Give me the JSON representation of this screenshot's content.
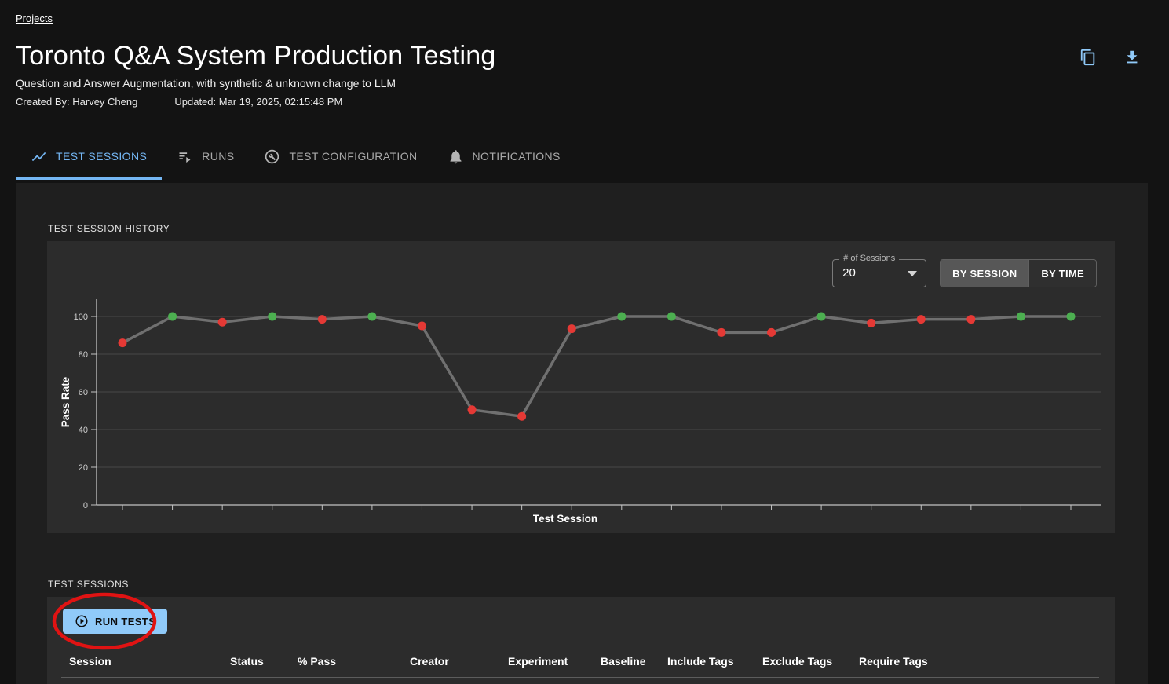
{
  "breadcrumb": {
    "label": "Projects"
  },
  "header": {
    "title": "Toronto Q&A System Production Testing",
    "subtitle": "Question and Answer Augmentation, with synthetic & unknown change to LLM",
    "created_by": "Created By: Harvey Cheng",
    "updated": "Updated: Mar 19, 2025, 02:15:48 PM",
    "actions": [
      {
        "name": "copy-button",
        "icon": "copy-icon"
      },
      {
        "name": "download-button",
        "icon": "download-icon"
      }
    ],
    "accent_color": "#90caf9"
  },
  "tabs": [
    {
      "label": "TEST SESSIONS",
      "icon": "line-chart-icon",
      "active": true
    },
    {
      "label": "RUNS",
      "icon": "playlist-play-icon",
      "active": false
    },
    {
      "label": "TEST CONFIGURATION",
      "icon": "wrench-circle-icon",
      "active": false
    },
    {
      "label": "NOTIFICATIONS",
      "icon": "bell-icon",
      "active": false
    }
  ],
  "history_section": {
    "label": "TEST SESSION HISTORY",
    "sessions_select": {
      "label": "# of Sessions",
      "value": "20"
    },
    "view_toggle": [
      {
        "label": "BY SESSION",
        "active": true
      },
      {
        "label": "BY TIME",
        "active": false
      }
    ]
  },
  "chart_data": {
    "type": "line",
    "title": "",
    "xlabel": "Test Session",
    "ylabel": "Pass Rate",
    "ylim": [
      0,
      100
    ],
    "yticks": [
      0,
      20,
      40,
      60,
      80,
      100
    ],
    "x_tick_labels": "none",
    "grid": true,
    "legend_position": "none",
    "series": [
      {
        "name": "Pass Rate",
        "values": [
          86,
          100,
          97,
          100,
          98.5,
          100,
          95,
          50.5,
          47,
          93.5,
          100,
          100,
          91.5,
          91.5,
          100,
          96.5,
          98.5,
          98.5,
          100,
          100
        ],
        "point_status": [
          "fail",
          "pass",
          "fail",
          "pass",
          "fail",
          "pass",
          "fail",
          "fail",
          "fail",
          "fail",
          "pass",
          "pass",
          "fail",
          "fail",
          "pass",
          "fail",
          "fail",
          "fail",
          "pass",
          "pass"
        ]
      }
    ],
    "colors": {
      "pass": "#4caf50",
      "fail": "#e53935",
      "line": "#707070",
      "axis": "#c2c2c2",
      "gridline": "rgba(255,255,255,0.14)"
    }
  },
  "sessions_section": {
    "label": "TEST SESSIONS",
    "run_tests_button": {
      "label": "RUN TESTS",
      "icon": "play-circle-icon"
    },
    "table": {
      "columns": [
        "Session",
        "Status",
        "% Pass",
        "Creator",
        "Experiment",
        "Baseline",
        "Include Tags",
        "Exclude Tags",
        "Require Tags"
      ]
    }
  },
  "annotation": {
    "shape": "ellipse-highlight",
    "target": "run-tests-button",
    "color": "#e01313"
  }
}
